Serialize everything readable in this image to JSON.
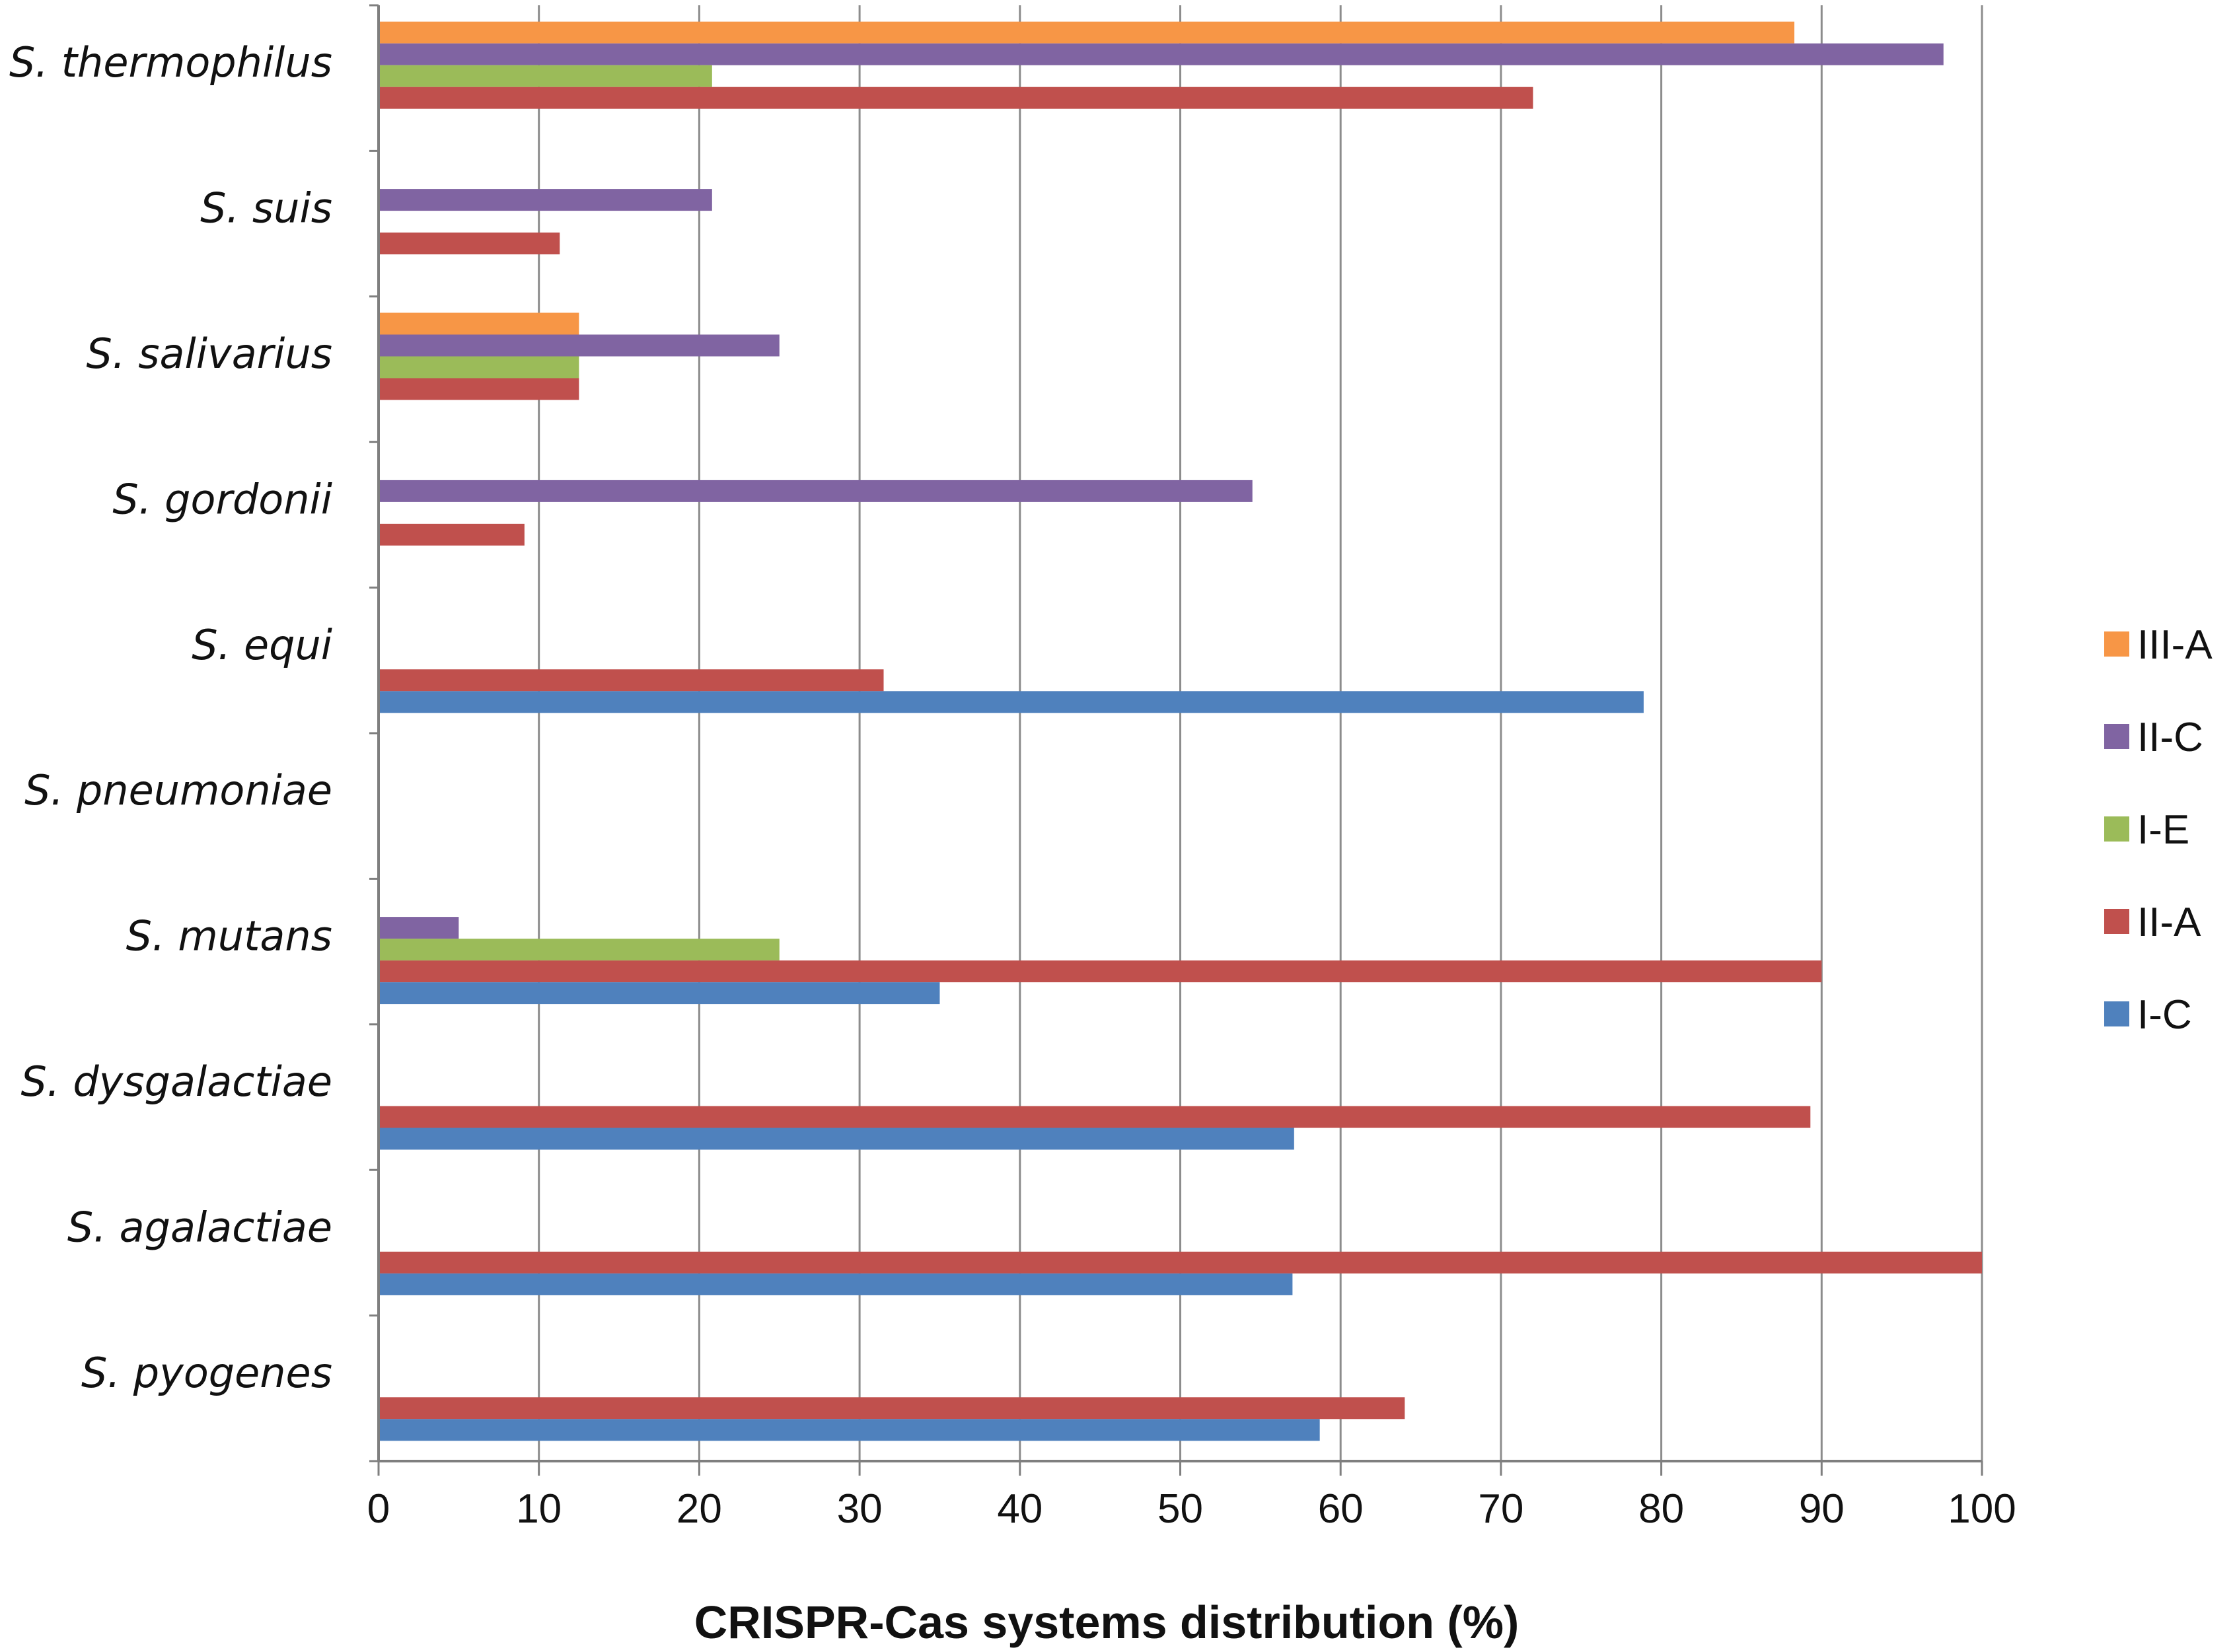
{
  "chart_data": {
    "type": "bar",
    "orientation": "horizontal",
    "title": "",
    "xlabel": "CRISPR-Cas systems distribution (%)",
    "ylabel": "",
    "xlim": [
      0,
      100
    ],
    "xticks": [
      0,
      10,
      20,
      30,
      40,
      50,
      60,
      70,
      80,
      90,
      100
    ],
    "grid": "vertical",
    "legend_position": "right",
    "categories": [
      "S. thermophilus",
      "S. suis",
      "S. salivarius",
      "S. gordonii",
      "S. equi",
      "S. pneumoniae",
      "S. mutans",
      "S. dysgalactiae",
      "S. agalactiae",
      "S. pyogenes"
    ],
    "series": [
      {
        "name": "III-A",
        "color": "#F79646",
        "values": [
          88.3,
          0,
          12.5,
          0,
          0,
          0,
          0,
          0,
          0,
          0
        ]
      },
      {
        "name": "II-C",
        "color": "#8064A2",
        "values": [
          97.6,
          20.8,
          25,
          54.5,
          0,
          0,
          5,
          0,
          0,
          0
        ]
      },
      {
        "name": "I-E",
        "color": "#9BBB59",
        "values": [
          20.8,
          0,
          12.5,
          0,
          0,
          0,
          25,
          0,
          0,
          0
        ]
      },
      {
        "name": "II-A",
        "color": "#C0504D",
        "values": [
          72,
          11.3,
          12.5,
          9.1,
          31.5,
          0,
          90,
          89.3,
          100,
          64
        ]
      },
      {
        "name": "I-C",
        "color": "#4F81BD",
        "values": [
          0,
          0,
          0,
          0,
          78.9,
          0,
          35,
          57.1,
          57,
          58.7
        ]
      }
    ]
  }
}
